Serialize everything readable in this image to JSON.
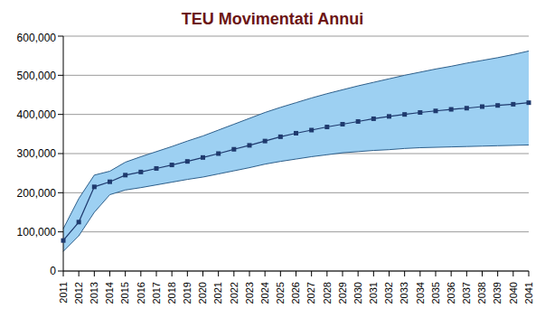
{
  "chart_data": {
    "type": "line",
    "title": "TEU Movimentati Annui",
    "categories": [
      "2011",
      "2012",
      "2013",
      "2014",
      "2015",
      "2016",
      "2017",
      "2018",
      "2019",
      "2020",
      "2021",
      "2022",
      "2023",
      "2024",
      "2025",
      "2026",
      "2027",
      "2028",
      "2029",
      "2030",
      "2031",
      "2032",
      "2033",
      "2034",
      "2035",
      "2036",
      "2037",
      "2038",
      "2039",
      "2040",
      "2041"
    ],
    "series": [
      {
        "type": "area",
        "color": "#9dd0f2",
        "lower": [
          50000,
          90000,
          150000,
          195000,
          207000,
          213000,
          220000,
          227000,
          234000,
          240000,
          248000,
          256000,
          264000,
          273000,
          280000,
          286000,
          292000,
          297000,
          302000,
          305000,
          308000,
          310000,
          313000,
          315000,
          316000,
          317000,
          318000,
          319000,
          320000,
          321000,
          322000
        ],
        "upper": [
          108000,
          185000,
          245000,
          255000,
          278000,
          292000,
          305000,
          318000,
          332000,
          345000,
          360000,
          375000,
          390000,
          405000,
          418000,
          430000,
          442000,
          453000,
          463000,
          473000,
          482000,
          491000,
          500000,
          508000,
          516000,
          523000,
          531000,
          538000,
          545000,
          553000,
          562000
        ]
      },
      {
        "type": "line",
        "color": "#1f3a6e",
        "marker": "square",
        "line_style": "solid",
        "values": [
          78000,
          125000,
          215000,
          228000,
          245000,
          253000,
          262000,
          271000,
          280000,
          290000,
          300000,
          311000,
          321000,
          332000,
          343000,
          352000,
          360000,
          368000,
          375000,
          382000,
          389000,
          395000,
          400000,
          405000,
          409000,
          413000,
          416000,
          420000,
          423000,
          426000,
          430000
        ]
      }
    ],
    "ylim": [
      0,
      600000
    ],
    "yticks": [
      0,
      {
        "value": 100000,
        "label": "100,000"
      },
      {
        "value": 200000,
        "label": "200,000"
      },
      {
        "value": 300000,
        "label": "300,000"
      },
      {
        "value": 400000,
        "label": "400,000"
      },
      {
        "value": 500000,
        "label": "500,000"
      },
      {
        "value": 600000,
        "label": "600,000"
      }
    ],
    "grid": true
  }
}
